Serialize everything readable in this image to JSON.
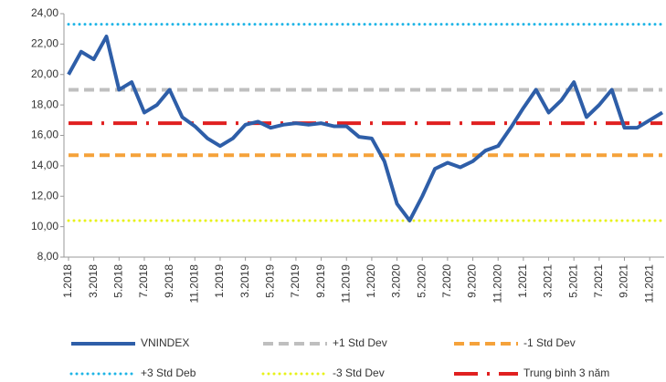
{
  "chart_data": {
    "type": "line",
    "categories": [
      "1.2018",
      null,
      "3.2018",
      null,
      "5.2018",
      null,
      "7.2018",
      null,
      "9.2018",
      null,
      "11.2018",
      null,
      "1.2019",
      null,
      "3.2019",
      null,
      "5.2019",
      null,
      "7.2019",
      null,
      "9.2019",
      null,
      "11.2019",
      null,
      "1.2020",
      null,
      "3.2020",
      null,
      "5.2020",
      null,
      "7.2020",
      null,
      "9.2020",
      null,
      "11.2020",
      null,
      "1.2021",
      null,
      "3.2021",
      null,
      "5.2021",
      null,
      "7.2021",
      null,
      "9.2021",
      null,
      "11.2021",
      null
    ],
    "ylim": [
      8,
      24
    ],
    "yticks": [
      {
        "value": 8,
        "label": "8,00"
      },
      {
        "value": 10,
        "label": "10,00"
      },
      {
        "value": 12,
        "label": "12,00"
      },
      {
        "value": 14,
        "label": "14,00"
      },
      {
        "value": 16,
        "label": "16,00"
      },
      {
        "value": 18,
        "label": "18,00"
      },
      {
        "value": 20,
        "label": "20,00"
      },
      {
        "value": 22,
        "label": "22,00"
      },
      {
        "value": 24,
        "label": "24,00"
      }
    ],
    "series": [
      {
        "name": "+3 Std Deb",
        "color": "#1fb5e6",
        "style": "dotted",
        "values": [
          23.3,
          23.3,
          23.3,
          23.3,
          23.3,
          23.3,
          23.3,
          23.3,
          23.3,
          23.3,
          23.3,
          23.3,
          23.3,
          23.3,
          23.3,
          23.3,
          23.3,
          23.3,
          23.3,
          23.3,
          23.3,
          23.3,
          23.3,
          23.3,
          23.3,
          23.3,
          23.3,
          23.3,
          23.3,
          23.3,
          23.3,
          23.3,
          23.3,
          23.3,
          23.3,
          23.3,
          23.3,
          23.3,
          23.3,
          23.3,
          23.3,
          23.3,
          23.3,
          23.3,
          23.3,
          23.3,
          23.3,
          23.3
        ]
      },
      {
        "name": "+1 Std Dev",
        "color": "#bfbfbf",
        "style": "dashed",
        "values": [
          19.0,
          19.0,
          19.0,
          19.0,
          19.0,
          19.0,
          19.0,
          19.0,
          19.0,
          19.0,
          19.0,
          19.0,
          19.0,
          19.0,
          19.0,
          19.0,
          19.0,
          19.0,
          19.0,
          19.0,
          19.0,
          19.0,
          19.0,
          19.0,
          19.0,
          19.0,
          19.0,
          19.0,
          19.0,
          19.0,
          19.0,
          19.0,
          19.0,
          19.0,
          19.0,
          19.0,
          19.0,
          19.0,
          19.0,
          19.0,
          19.0,
          19.0,
          19.0,
          19.0,
          19.0,
          19.0,
          19.0,
          19.0
        ]
      },
      {
        "name": "-1 Std Dev",
        "color": "#f5a23a",
        "style": "dashed",
        "values": [
          14.7,
          14.7,
          14.7,
          14.7,
          14.7,
          14.7,
          14.7,
          14.7,
          14.7,
          14.7,
          14.7,
          14.7,
          14.7,
          14.7,
          14.7,
          14.7,
          14.7,
          14.7,
          14.7,
          14.7,
          14.7,
          14.7,
          14.7,
          14.7,
          14.7,
          14.7,
          14.7,
          14.7,
          14.7,
          14.7,
          14.7,
          14.7,
          14.7,
          14.7,
          14.7,
          14.7,
          14.7,
          14.7,
          14.7,
          14.7,
          14.7,
          14.7,
          14.7,
          14.7,
          14.7,
          14.7,
          14.7,
          14.7
        ]
      },
      {
        "name": "-3 Std Dev",
        "color": "#e8f21b",
        "style": "dotted",
        "values": [
          10.4,
          10.4,
          10.4,
          10.4,
          10.4,
          10.4,
          10.4,
          10.4,
          10.4,
          10.4,
          10.4,
          10.4,
          10.4,
          10.4,
          10.4,
          10.4,
          10.4,
          10.4,
          10.4,
          10.4,
          10.4,
          10.4,
          10.4,
          10.4,
          10.4,
          10.4,
          10.4,
          10.4,
          10.4,
          10.4,
          10.4,
          10.4,
          10.4,
          10.4,
          10.4,
          10.4,
          10.4,
          10.4,
          10.4,
          10.4,
          10.4,
          10.4,
          10.4,
          10.4,
          10.4,
          10.4,
          10.4,
          10.4
        ]
      },
      {
        "name": "Trung bình 3 năm",
        "color": "#e02020",
        "style": "dashdot",
        "values": [
          16.8,
          16.8,
          16.8,
          16.8,
          16.8,
          16.8,
          16.8,
          16.8,
          16.8,
          16.8,
          16.8,
          16.8,
          16.8,
          16.8,
          16.8,
          16.8,
          16.8,
          16.8,
          16.8,
          16.8,
          16.8,
          16.8,
          16.8,
          16.8,
          16.8,
          16.8,
          16.8,
          16.8,
          16.8,
          16.8,
          16.8,
          16.8,
          16.8,
          16.8,
          16.8,
          16.8,
          16.8,
          16.8,
          16.8,
          16.8,
          16.8,
          16.8,
          16.8,
          16.8,
          16.8,
          16.8,
          16.8,
          16.8
        ]
      },
      {
        "name": "VNINDEX",
        "color": "#2e5ea8",
        "style": "solid",
        "values": [
          20.0,
          21.5,
          21.0,
          22.5,
          19.0,
          19.5,
          17.5,
          18.0,
          19.0,
          17.2,
          16.6,
          15.8,
          15.3,
          15.8,
          16.7,
          16.9,
          16.5,
          16.7,
          16.8,
          16.7,
          16.8,
          16.6,
          16.6,
          15.9,
          15.8,
          14.3,
          11.5,
          10.4,
          12.0,
          13.8,
          14.2,
          13.9,
          14.3,
          15.0,
          15.3,
          16.5,
          17.8,
          19.0,
          17.5,
          18.3,
          19.5,
          17.2,
          18.0,
          19.0,
          16.5,
          16.5,
          17.0,
          17.5
        ]
      }
    ]
  }
}
